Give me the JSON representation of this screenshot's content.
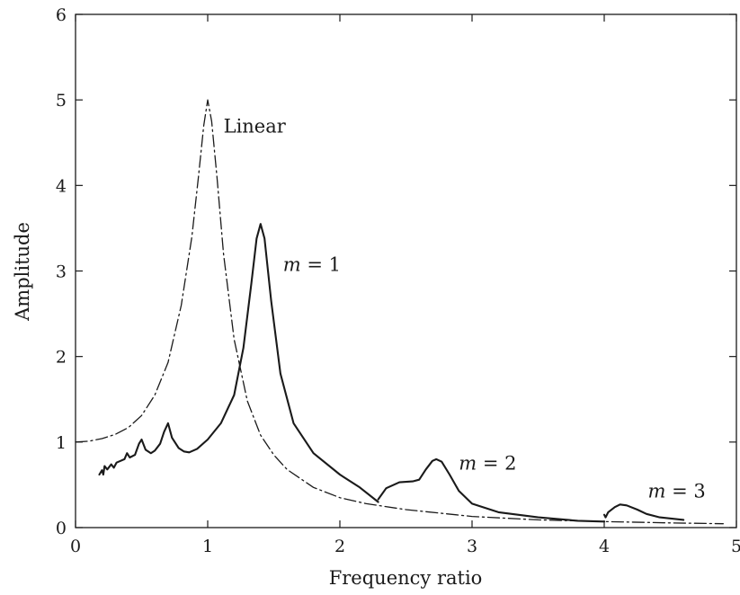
{
  "chart_data": {
    "type": "line",
    "xlabel": "Frequency ratio",
    "ylabel": "Amplitude",
    "xlim": [
      0,
      5
    ],
    "ylim": [
      0,
      6
    ],
    "xticks": [
      0,
      1,
      2,
      3,
      4,
      5
    ],
    "yticks": [
      0,
      1,
      2,
      3,
      4,
      5,
      6
    ],
    "grid": false,
    "legend": "none",
    "annotations": [
      {
        "text": "Linear",
        "x": 1.12,
        "y": 4.62
      },
      {
        "prefix": "m",
        "text": " = 1",
        "x": 1.57,
        "y": 3.0
      },
      {
        "prefix": "m",
        "text": " = 2",
        "x": 2.9,
        "y": 0.68
      },
      {
        "prefix": "m",
        "text": " = 3",
        "x": 4.33,
        "y": 0.35
      }
    ],
    "series": [
      {
        "style": "dashdot",
        "color": "#1a1a1a",
        "points": [
          [
            0,
            1.0
          ],
          [
            0.1,
            1.01
          ],
          [
            0.2,
            1.04
          ],
          [
            0.3,
            1.09
          ],
          [
            0.4,
            1.17
          ],
          [
            0.5,
            1.31
          ],
          [
            0.6,
            1.55
          ],
          [
            0.7,
            1.93
          ],
          [
            0.8,
            2.6
          ],
          [
            0.88,
            3.4
          ],
          [
            0.93,
            4.1
          ],
          [
            0.97,
            4.7
          ],
          [
            1.0,
            5.0
          ],
          [
            1.03,
            4.75
          ],
          [
            1.07,
            4.1
          ],
          [
            1.12,
            3.2
          ],
          [
            1.2,
            2.2
          ],
          [
            1.3,
            1.48
          ],
          [
            1.4,
            1.08
          ],
          [
            1.5,
            0.85
          ],
          [
            1.6,
            0.68
          ],
          [
            1.8,
            0.47
          ],
          [
            2.0,
            0.35
          ],
          [
            2.2,
            0.28
          ],
          [
            2.5,
            0.21
          ],
          [
            3.0,
            0.13
          ],
          [
            3.5,
            0.09
          ],
          [
            4.0,
            0.07
          ],
          [
            4.5,
            0.055
          ],
          [
            4.9,
            0.045
          ]
        ]
      },
      {
        "name": "m = 1",
        "style": "solid",
        "color": "#1a1a1a",
        "points": [
          [
            0.18,
            0.62
          ],
          [
            0.2,
            0.67
          ],
          [
            0.21,
            0.62
          ],
          [
            0.22,
            0.72
          ],
          [
            0.24,
            0.68
          ],
          [
            0.27,
            0.74
          ],
          [
            0.29,
            0.7
          ],
          [
            0.31,
            0.76
          ],
          [
            0.34,
            0.78
          ],
          [
            0.37,
            0.8
          ],
          [
            0.39,
            0.87
          ],
          [
            0.41,
            0.82
          ],
          [
            0.45,
            0.85
          ],
          [
            0.48,
            0.98
          ],
          [
            0.5,
            1.03
          ],
          [
            0.53,
            0.91
          ],
          [
            0.57,
            0.87
          ],
          [
            0.6,
            0.9
          ],
          [
            0.64,
            0.98
          ],
          [
            0.67,
            1.12
          ],
          [
            0.7,
            1.22
          ],
          [
            0.73,
            1.05
          ],
          [
            0.78,
            0.93
          ],
          [
            0.82,
            0.89
          ],
          [
            0.86,
            0.88
          ],
          [
            0.92,
            0.92
          ],
          [
            1.0,
            1.03
          ],
          [
            1.1,
            1.22
          ],
          [
            1.2,
            1.55
          ],
          [
            1.27,
            2.1
          ],
          [
            1.33,
            2.85
          ],
          [
            1.37,
            3.38
          ],
          [
            1.4,
            3.55
          ],
          [
            1.43,
            3.38
          ],
          [
            1.48,
            2.65
          ],
          [
            1.55,
            1.8
          ],
          [
            1.65,
            1.22
          ],
          [
            1.8,
            0.87
          ],
          [
            2.0,
            0.62
          ],
          [
            2.15,
            0.47
          ],
          [
            2.29,
            0.3
          ]
        ]
      },
      {
        "name": "m = 2",
        "style": "solid",
        "color": "#1a1a1a",
        "points": [
          [
            2.29,
            0.33
          ],
          [
            2.35,
            0.46
          ],
          [
            2.45,
            0.53
          ],
          [
            2.55,
            0.54
          ],
          [
            2.6,
            0.56
          ],
          [
            2.65,
            0.68
          ],
          [
            2.7,
            0.78
          ],
          [
            2.73,
            0.8
          ],
          [
            2.77,
            0.77
          ],
          [
            2.83,
            0.62
          ],
          [
            2.9,
            0.43
          ],
          [
            3.0,
            0.28
          ],
          [
            3.2,
            0.18
          ],
          [
            3.5,
            0.12
          ],
          [
            3.8,
            0.08
          ],
          [
            4.0,
            0.07
          ]
        ]
      },
      {
        "name": "m = 3",
        "style": "solid",
        "color": "#1a1a1a",
        "points": [
          [
            4.0,
            0.15
          ],
          [
            4.01,
            0.12
          ],
          [
            4.03,
            0.18
          ],
          [
            4.08,
            0.24
          ],
          [
            4.12,
            0.27
          ],
          [
            4.17,
            0.26
          ],
          [
            4.25,
            0.21
          ],
          [
            4.32,
            0.16
          ],
          [
            4.42,
            0.12
          ],
          [
            4.6,
            0.09
          ]
        ]
      }
    ]
  }
}
